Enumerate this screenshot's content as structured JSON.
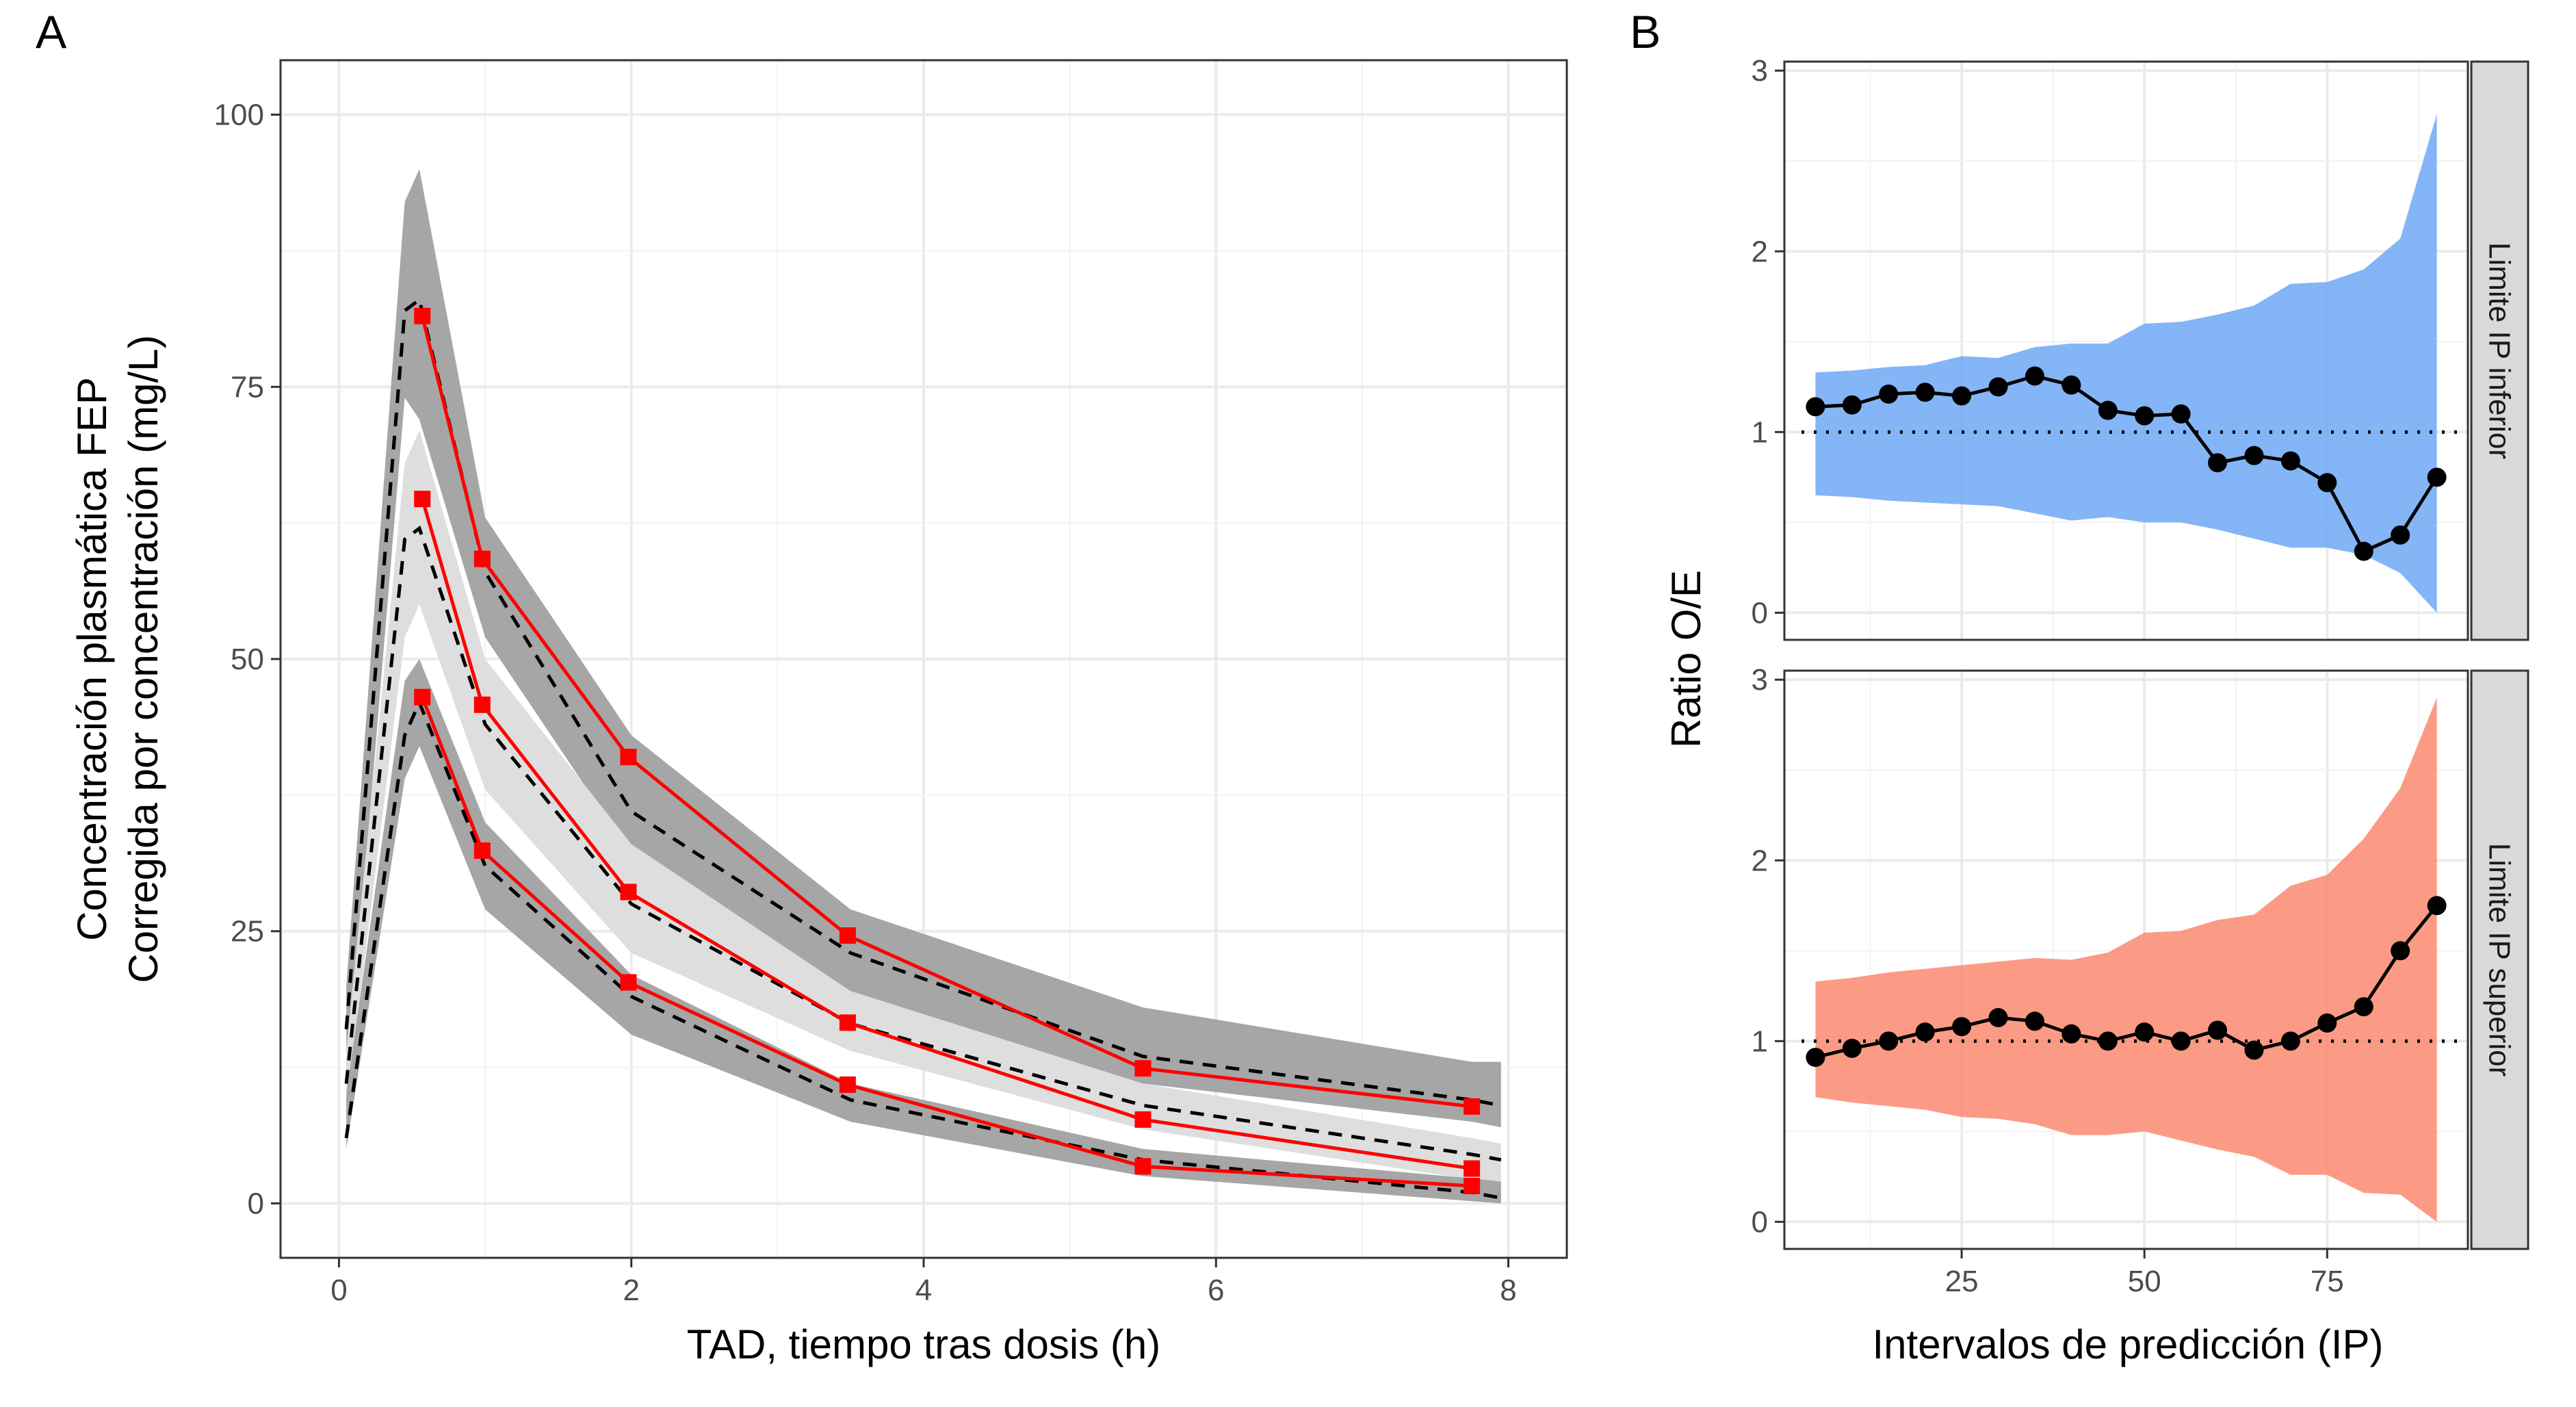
{
  "chart_data": [
    {
      "tag": "A",
      "type": "line",
      "xlabel": "TAD, tiempo tras dosis (h)",
      "ylabel_lines": [
        "Concentración plasmática FEP",
        "Corregida por concentración (mg/L)"
      ],
      "xlim": [
        -0.4,
        8.4
      ],
      "ylim": [
        -5,
        105
      ],
      "xticks": [
        0,
        2,
        4,
        6,
        8
      ],
      "xtick_labels": [
        "0",
        "2",
        "4",
        "6",
        "8"
      ],
      "yticks": [
        0,
        25,
        50,
        75,
        100
      ],
      "ytick_labels": [
        "0",
        "25",
        "50",
        "75",
        "100"
      ],
      "grid": true,
      "colors": {
        "outer_band": "#a6a6a6",
        "median_band": "#dedede",
        "observed": "#ff0000",
        "predicted": "#000000"
      },
      "bands": [
        {
          "name": "p95",
          "role": "outer",
          "x": [
            0.05,
            0.45,
            0.55,
            1.0,
            2.0,
            3.5,
            5.5,
            7.75,
            7.95
          ],
          "lower": [
            10,
            74,
            72,
            52,
            32,
            19.5,
            11,
            7.5,
            7
          ],
          "upper": [
            20,
            92,
            95,
            63,
            43,
            27,
            18,
            13,
            13
          ]
        },
        {
          "name": "p50",
          "role": "median",
          "x": [
            0.05,
            0.45,
            0.55,
            1.0,
            2.0,
            3.5,
            5.5,
            7.75,
            7.95
          ],
          "lower": [
            9,
            52,
            55,
            38,
            23,
            14,
            6.8,
            2.2,
            2
          ],
          "upper": [
            14,
            68,
            71,
            50,
            33,
            19.5,
            11,
            6,
            5.5
          ]
        },
        {
          "name": "p05",
          "role": "outer",
          "x": [
            0.05,
            0.45,
            0.55,
            1.0,
            2.0,
            3.5,
            5.5,
            7.75,
            7.95
          ],
          "lower": [
            5,
            39,
            42,
            27,
            15.5,
            7.5,
            2.5,
            0.2,
            0
          ],
          "upper": [
            10,
            48,
            50,
            35,
            21,
            11,
            5,
            2.3,
            2
          ]
        }
      ],
      "predicted": [
        {
          "x": [
            0.05,
            0.45,
            0.55,
            1.0,
            2.0,
            3.5,
            5.5,
            7.75,
            7.95
          ],
          "y": [
            16,
            82,
            83,
            58,
            36,
            23,
            13.5,
            9.5,
            9
          ]
        },
        {
          "x": [
            0.05,
            0.45,
            0.55,
            1.0,
            2.0,
            3.5,
            5.5,
            7.75,
            7.95
          ],
          "y": [
            11,
            61,
            62,
            44,
            27.5,
            16.5,
            9,
            4.5,
            4
          ]
        },
        {
          "x": [
            0.05,
            0.45,
            0.55,
            1.0,
            2.0,
            3.5,
            5.5,
            7.75,
            7.95
          ],
          "y": [
            6,
            43,
            46,
            31,
            19,
            9.5,
            4,
            1,
            0.5
          ]
        }
      ],
      "observed": [
        {
          "x": [
            0.57,
            0.98,
            1.98,
            3.48,
            5.5,
            7.75
          ],
          "y": [
            81.5,
            59.2,
            41.0,
            24.6,
            12.4,
            8.9
          ]
        },
        {
          "x": [
            0.57,
            0.98,
            1.98,
            3.48,
            5.5,
            7.75
          ],
          "y": [
            64.7,
            45.8,
            28.6,
            16.6,
            7.7,
            3.2
          ]
        },
        {
          "x": [
            0.57,
            0.98,
            1.98,
            3.48,
            5.5,
            7.75
          ],
          "y": [
            46.5,
            32.4,
            20.3,
            10.9,
            3.4,
            1.6
          ]
        }
      ]
    },
    {
      "tag": "B",
      "type": "line",
      "xlabel": "Intervalos de predicción (IP)",
      "ylabel": "Ratio O/E",
      "xlim": [
        0.75,
        94.25
      ],
      "ylim": [
        -0.15,
        3.05
      ],
      "xticks": [
        25,
        50,
        75
      ],
      "xtick_labels": [
        "25",
        "50",
        "75"
      ],
      "yticks": [
        0,
        1,
        2,
        3
      ],
      "ytick_labels": [
        "0",
        "1",
        "2",
        "3"
      ],
      "grid": true,
      "reference_y": 1,
      "x": [
        5,
        10,
        15,
        20,
        25,
        30,
        35,
        40,
        45,
        50,
        55,
        60,
        65,
        70,
        75,
        80,
        85,
        90
      ],
      "panels": [
        {
          "strip_label": "Limite IP inferior",
          "fill_color": "#6fa8f5",
          "ratio": [
            1.14,
            1.15,
            1.21,
            1.22,
            1.2,
            1.25,
            1.31,
            1.26,
            1.12,
            1.09,
            1.1,
            0.83,
            0.87,
            0.84,
            0.72,
            0.34,
            0.43,
            0.75
          ],
          "band_lower": [
            0.65,
            0.64,
            0.62,
            0.61,
            0.6,
            0.59,
            0.55,
            0.51,
            0.53,
            0.5,
            0.5,
            0.46,
            0.41,
            0.36,
            0.36,
            0.32,
            0.22,
            0.0
          ],
          "band_upper": [
            1.33,
            1.34,
            1.36,
            1.37,
            1.42,
            1.41,
            1.47,
            1.49,
            1.49,
            1.6,
            1.61,
            1.65,
            1.7,
            1.82,
            1.83,
            1.9,
            2.07,
            2.76
          ]
        },
        {
          "strip_label": "Limite IP superior",
          "fill_color": "#fb8a70",
          "ratio": [
            0.91,
            0.96,
            1.0,
            1.05,
            1.08,
            1.13,
            1.11,
            1.04,
            1.0,
            1.05,
            1.0,
            1.06,
            0.95,
            1.0,
            1.1,
            1.19,
            1.5,
            1.75
          ],
          "band_lower": [
            0.69,
            0.66,
            0.64,
            0.62,
            0.58,
            0.57,
            0.54,
            0.48,
            0.48,
            0.5,
            0.45,
            0.4,
            0.36,
            0.26,
            0.26,
            0.16,
            0.15,
            0.0
          ],
          "band_upper": [
            1.33,
            1.35,
            1.38,
            1.4,
            1.42,
            1.44,
            1.46,
            1.45,
            1.49,
            1.6,
            1.61,
            1.67,
            1.7,
            1.86,
            1.92,
            2.12,
            2.4,
            2.9
          ]
        }
      ]
    }
  ]
}
